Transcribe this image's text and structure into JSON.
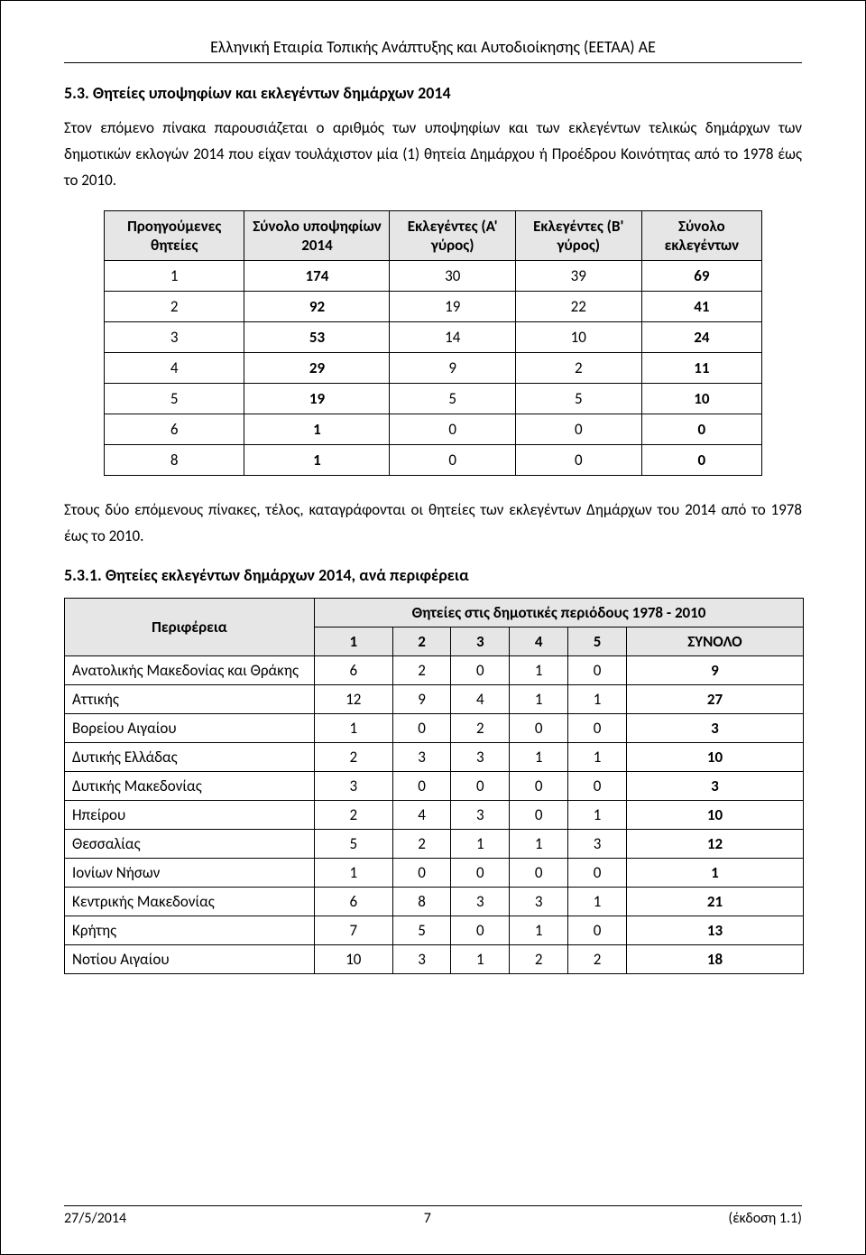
{
  "header": {
    "org": "Ελληνική Εταιρία Τοπικής Ανάπτυξης και Αυτοδιοίκησης (ΕΕΤΑΑ) ΑΕ"
  },
  "section53": {
    "title": "5.3. Θητείες υποψηφίων και εκλεγέντων δημάρχων 2014",
    "paragraph": "Στον επόμενο πίνακα παρουσιάζεται ο αριθμός των υποψηφίων και των εκλεγέντων τελικώς δημάρχων των δημοτικών εκλογών 2014 που είχαν τουλάχιστον μία (1) θητεία Δημάρχου ή Προέδρου Κοινότητας από το 1978 έως το 2010."
  },
  "table1": {
    "columns": [
      "Προηγούμενες θητείες",
      "Σύνολο υποψηφίων 2014",
      "Εκλεγέντες (Α' γύρος)",
      "Εκλεγέντες (Β' γύρος)",
      "Σύνολο εκλεγέντων"
    ],
    "rows": [
      [
        "1",
        "174",
        "30",
        "39",
        "69"
      ],
      [
        "2",
        "92",
        "19",
        "22",
        "41"
      ],
      [
        "3",
        "53",
        "14",
        "10",
        "24"
      ],
      [
        "4",
        "29",
        "9",
        "2",
        "11"
      ],
      [
        "5",
        "19",
        "5",
        "5",
        "10"
      ],
      [
        "6",
        "1",
        "0",
        "0",
        "0"
      ],
      [
        "8",
        "1",
        "0",
        "0",
        "0"
      ]
    ]
  },
  "midpara": "Στους δύο επόμενους πίνακες, τέλος, καταγράφονται οι θητείες των εκλεγέντων Δημάρχων του 2014 από το 1978 έως το 2010.",
  "section531": {
    "title": "5.3.1. Θητείες εκλεγέντων δημάρχων 2014, ανά περιφέρεια"
  },
  "table2": {
    "header_top": "Θητείες στις δημοτικές περιόδους 1978 - 2010",
    "region_col": "Περιφέρεια",
    "columns": [
      "1",
      "2",
      "3",
      "4",
      "5",
      "ΣΥΝΟΛΟ"
    ],
    "rows": [
      [
        "Ανατολικής Μακεδονίας και Θράκης",
        "6",
        "2",
        "0",
        "1",
        "0",
        "9"
      ],
      [
        "Αττικής",
        "12",
        "9",
        "4",
        "1",
        "1",
        "27"
      ],
      [
        "Βορείου Αιγαίου",
        "1",
        "0",
        "2",
        "0",
        "0",
        "3"
      ],
      [
        "Δυτικής Ελλάδας",
        "2",
        "3",
        "3",
        "1",
        "1",
        "10"
      ],
      [
        "Δυτικής Μακεδονίας",
        "3",
        "0",
        "0",
        "0",
        "0",
        "3"
      ],
      [
        "Ηπείρου",
        "2",
        "4",
        "3",
        "0",
        "1",
        "10"
      ],
      [
        "Θεσσαλίας",
        "5",
        "2",
        "1",
        "1",
        "3",
        "12"
      ],
      [
        "Ιονίων Νήσων",
        "1",
        "0",
        "0",
        "0",
        "0",
        "1"
      ],
      [
        "Κεντρικής Μακεδονίας",
        "6",
        "8",
        "3",
        "3",
        "1",
        "21"
      ],
      [
        "Κρήτης",
        "7",
        "5",
        "0",
        "1",
        "0",
        "13"
      ],
      [
        "Νοτίου Αιγαίου",
        "10",
        "3",
        "1",
        "2",
        "2",
        "18"
      ]
    ]
  },
  "footer": {
    "date": "27/5/2014",
    "page": "7",
    "version": "(έκδοση 1.1)"
  }
}
